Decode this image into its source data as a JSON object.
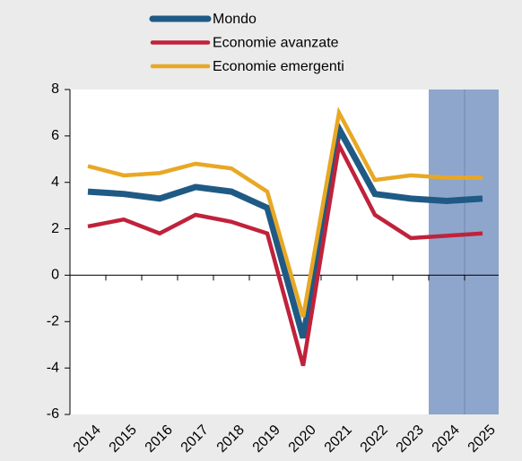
{
  "chart_data": {
    "type": "line",
    "categories": [
      "2014",
      "2015",
      "2016",
      "2017",
      "2018",
      "2019",
      "2020",
      "2021",
      "2022",
      "2023",
      "2024",
      "2025"
    ],
    "series": [
      {
        "name": "Mondo",
        "color": "#1f5a85",
        "values": [
          3.6,
          3.5,
          3.3,
          3.8,
          3.6,
          2.9,
          -2.7,
          6.3,
          3.5,
          3.3,
          3.2,
          3.3
        ]
      },
      {
        "name": "Economie avanzate",
        "color": "#c0223b",
        "values": [
          2.1,
          2.4,
          1.8,
          2.6,
          2.3,
          1.8,
          -3.9,
          5.6,
          2.6,
          1.6,
          1.7,
          1.8
        ]
      },
      {
        "name": "Economie emergenti",
        "color": "#e8a825",
        "values": [
          4.7,
          4.3,
          4.4,
          4.8,
          4.6,
          3.6,
          -1.8,
          7.0,
          4.1,
          4.3,
          4.2,
          4.2
        ]
      }
    ],
    "ylim": [
      -6,
      8
    ],
    "yticks": [
      -6,
      -4,
      -2,
      0,
      2,
      4,
      6,
      8
    ],
    "shade_categories": [
      "2024",
      "2025"
    ],
    "shade_color": "#8fa6cc"
  }
}
